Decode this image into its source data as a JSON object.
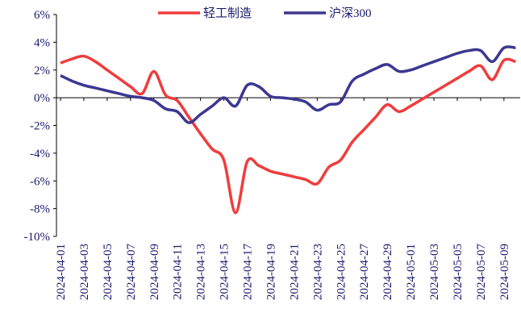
{
  "chart_data": {
    "type": "line",
    "categories": [
      "2024-04-01",
      null,
      "2024-04-03",
      null,
      "2024-04-05",
      null,
      "2024-04-07",
      null,
      "2024-04-09",
      null,
      "2024-04-11",
      null,
      "2024-04-13",
      null,
      "2024-04-15",
      null,
      "2024-04-17",
      null,
      "2024-04-19",
      null,
      "2024-04-21",
      null,
      "2024-04-23",
      null,
      "2024-04-25",
      null,
      "2024-04-27",
      null,
      "2024-04-29",
      null,
      "2024-05-01",
      null,
      "2024-05-03",
      null,
      "2024-05-05",
      null,
      "2024-05-07",
      null,
      "2024-05-09",
      null
    ],
    "series": [
      {
        "name": "轻工制造",
        "color": "#f03c3c",
        "values": [
          2.5,
          2.8,
          3.0,
          2.6,
          2.0,
          1.4,
          0.8,
          0.3,
          1.9,
          0.2,
          -0.2,
          -1.4,
          -2.6,
          -3.7,
          -4.5,
          -8.3,
          -4.6,
          -4.9,
          -5.3,
          -5.5,
          -5.7,
          -5.9,
          -6.2,
          -5.0,
          -4.5,
          -3.2,
          -2.3,
          -1.4,
          -0.5,
          -1.0,
          -0.6,
          -0.1,
          0.4,
          0.9,
          1.4,
          1.9,
          2.3,
          1.3,
          2.7,
          2.6
        ]
      },
      {
        "name": "沪深300",
        "color": "#3d3791",
        "values": [
          1.6,
          1.2,
          0.9,
          0.7,
          0.5,
          0.3,
          0.1,
          0.0,
          -0.2,
          -0.8,
          -1.0,
          -1.8,
          -1.2,
          -0.6,
          0.0,
          -0.6,
          0.9,
          0.8,
          0.1,
          0.0,
          -0.1,
          -0.3,
          -0.9,
          -0.5,
          -0.3,
          1.2,
          1.7,
          2.1,
          2.4,
          1.9,
          2.0,
          2.3,
          2.6,
          2.9,
          3.2,
          3.4,
          3.4,
          2.6,
          3.6,
          3.6
        ]
      }
    ],
    "ylim": [
      -10,
      6
    ],
    "yticks": [
      {
        "value": -10,
        "label": "-10%"
      },
      {
        "value": -8,
        "label": "-8%"
      },
      {
        "value": -6,
        "label": "-6%"
      },
      {
        "value": -4,
        "label": "-4%"
      },
      {
        "value": -2,
        "label": "-2%"
      },
      {
        "value": 0,
        "label": "0%"
      },
      {
        "value": 2,
        "label": "2%"
      },
      {
        "value": 4,
        "label": "4%"
      },
      {
        "value": 6,
        "label": "6%"
      }
    ],
    "legend": "top"
  }
}
